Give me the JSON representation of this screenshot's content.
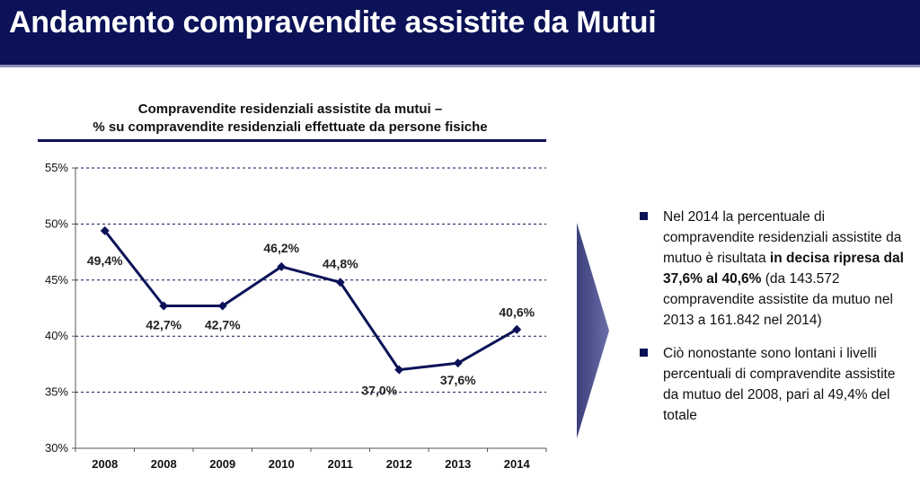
{
  "header": {
    "title": "Andamento compravendite assistite da Mutui"
  },
  "chart_data": {
    "type": "line",
    "title_line1": "Compravendite residenziali assistite da mutui –",
    "title_line2": "% su compravendite residenziali effettuate da persone fisiche",
    "categories": [
      "2008",
      "2008",
      "2009",
      "2010",
      "2011",
      "2012",
      "2013",
      "2014"
    ],
    "values": [
      49.4,
      42.7,
      42.7,
      46.2,
      44.8,
      37.0,
      37.6,
      40.6
    ],
    "data_labels": [
      "49,4%",
      "42,7%",
      "42,7%",
      "46,2%",
      "44,8%",
      "37,0%",
      "37,6%",
      "40,6%"
    ],
    "y_ticks": [
      30,
      35,
      40,
      45,
      50,
      55
    ],
    "y_tick_labels": [
      "30%",
      "35%",
      "40%",
      "45%",
      "50%",
      "55%"
    ],
    "ylim": [
      30,
      55
    ],
    "grid": "dashed horizontal",
    "line_color": "#0b1257"
  },
  "bullets": [
    {
      "parts": [
        {
          "text": "Nel 2014 la percentuale di compravendite residenziali assistite da mutuo è risultata ",
          "bold": false
        },
        {
          "text": "in decisa ripresa dal 37,6% al 40,6%",
          "bold": true
        },
        {
          "text": " (da 143.572 compravendite assistite da mutuo nel 2013 a 161.842 nel 2014)",
          "bold": false
        }
      ]
    },
    {
      "parts": [
        {
          "text": "Ciò nonostante sono lontani i livelli percentuali di compravendite assistite da mutuo del 2008, pari al 49,4% del totale",
          "bold": false
        }
      ]
    }
  ]
}
